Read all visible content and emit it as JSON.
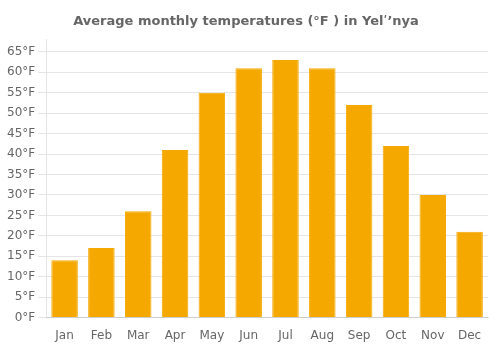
{
  "chart_data": {
    "type": "bar",
    "title": "Average monthly temperatures (°F ) in Yelʹ’nya",
    "categories": [
      "Jan",
      "Feb",
      "Mar",
      "Apr",
      "May",
      "Jun",
      "Jul",
      "Aug",
      "Sep",
      "Oct",
      "Nov",
      "Dec"
    ],
    "values": [
      14,
      17,
      26,
      41,
      55,
      61,
      63,
      61,
      52,
      42,
      30,
      21
    ],
    "color": "#F5A800",
    "ylim": [
      0,
      68
    ],
    "yticks": [
      {
        "value": 0,
        "label": "0°F"
      },
      {
        "value": 5,
        "label": "5°F"
      },
      {
        "value": 10,
        "label": "10°F"
      },
      {
        "value": 15,
        "label": "15°F"
      },
      {
        "value": 20,
        "label": "20°F"
      },
      {
        "value": 25,
        "label": "25°F"
      },
      {
        "value": 30,
        "label": "30°F"
      },
      {
        "value": 35,
        "label": "35°F"
      },
      {
        "value": 40,
        "label": "40°F"
      },
      {
        "value": 45,
        "label": "45°F"
      },
      {
        "value": 50,
        "label": "50°F"
      },
      {
        "value": 55,
        "label": "55°F"
      },
      {
        "value": 60,
        "label": "60°F"
      },
      {
        "value": 65,
        "label": "65°F"
      }
    ],
    "grid": true
  }
}
